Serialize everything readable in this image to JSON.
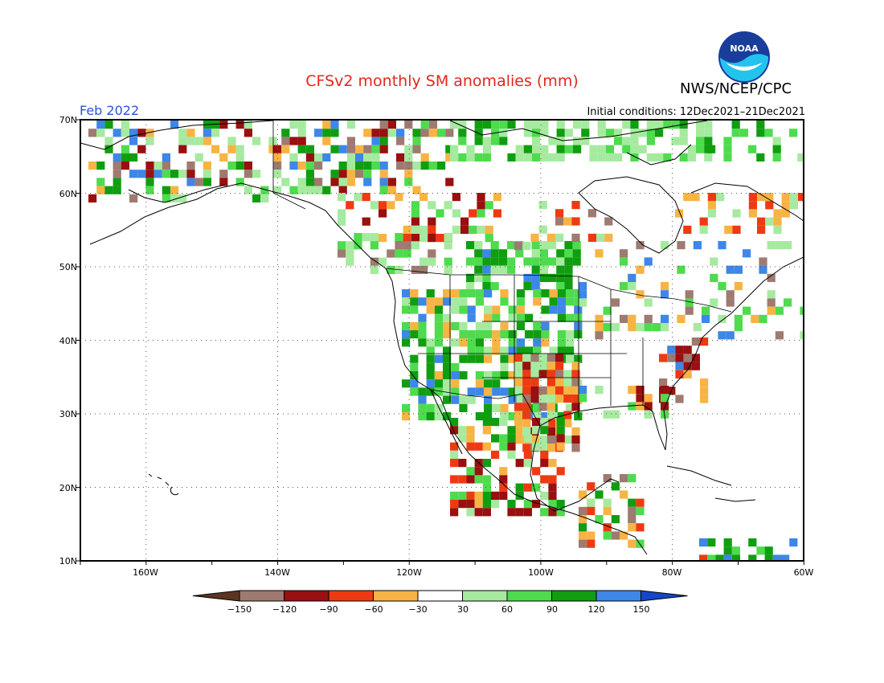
{
  "title": "CFSv2 monthly SM anomalies (mm)",
  "agency": "NWS/NCEP/CPC",
  "logo_text": "NOAA",
  "month_label": "Feb 2022",
  "initial_conditions": "Initial conditions: 12Dec2021–21Dec2021",
  "lat_labels": [
    "70N",
    "60N",
    "50N",
    "40N",
    "30N",
    "20N",
    "10N"
  ],
  "lon_labels": [
    "160W",
    "140W",
    "120W",
    "100W",
    "80W",
    "60W"
  ],
  "colorbar": {
    "labels": [
      "−150",
      "−120",
      "−90",
      "−60",
      "−30",
      "30",
      "60",
      "90",
      "120",
      "150"
    ],
    "colors": [
      "#5c3520",
      "#9e7a70",
      "#9a0f0f",
      "#ee3a12",
      "#f7b444",
      "#ffffff",
      "#a6eaa0",
      "#4edb4e",
      "#109e10",
      "#3e86e8",
      "#1446c8"
    ]
  },
  "colors": {
    "title": "#e0281e",
    "month": "#2a55d6",
    "frame": "#000000"
  }
}
